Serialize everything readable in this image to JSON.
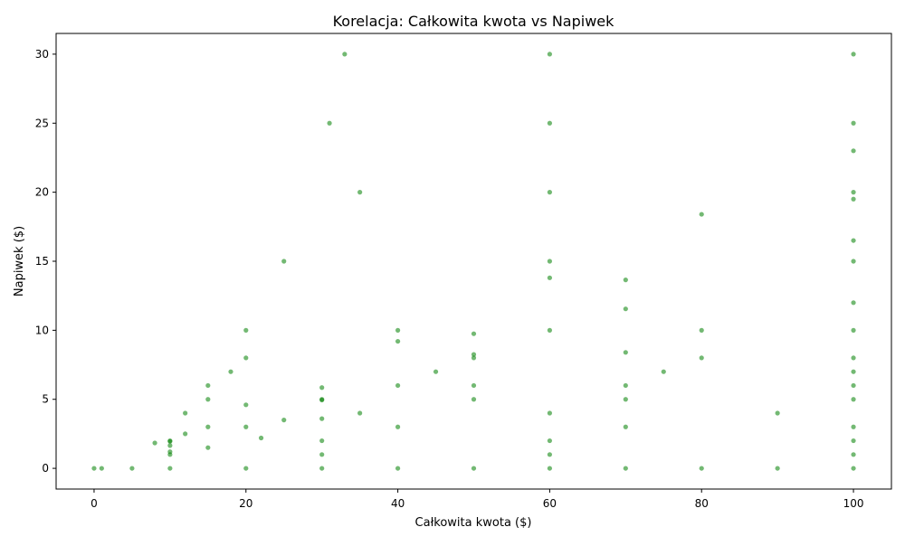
{
  "chart_data": {
    "type": "scatter",
    "title": "Korelacja: Całkowita kwota vs Napiwek",
    "xlabel": "Całkowita kwota ($)",
    "ylabel": "Napiwek ($)",
    "xlim": [
      -5,
      105
    ],
    "ylim": [
      -1.5,
      31.5
    ],
    "x_ticks": [
      0,
      20,
      40,
      60,
      80,
      100
    ],
    "y_ticks": [
      0,
      5,
      10,
      15,
      20,
      25,
      30
    ],
    "grid": false,
    "legend": "none",
    "color": "#008000",
    "series": [
      {
        "points": [
          [
            0,
            0
          ],
          [
            1,
            0
          ],
          [
            5,
            0
          ],
          [
            10,
            0
          ],
          [
            20,
            0
          ],
          [
            30,
            0
          ],
          [
            40,
            0
          ],
          [
            50,
            0
          ],
          [
            60,
            0
          ],
          [
            70,
            0
          ],
          [
            80,
            0
          ],
          [
            90,
            0
          ],
          [
            100,
            0
          ],
          [
            15,
            5
          ],
          [
            30,
            5
          ],
          [
            50,
            5
          ],
          [
            70,
            5
          ],
          [
            100,
            5
          ],
          [
            20,
            10
          ],
          [
            40,
            10
          ],
          [
            60,
            10
          ],
          [
            80,
            10
          ],
          [
            100,
            10
          ],
          [
            10,
            1
          ],
          [
            30,
            1
          ],
          [
            60,
            1
          ],
          [
            100,
            1
          ],
          [
            10,
            2
          ],
          [
            30,
            2
          ],
          [
            60,
            2
          ],
          [
            100,
            2
          ],
          [
            15,
            3
          ],
          [
            40,
            3
          ],
          [
            70,
            3
          ],
          [
            100,
            3
          ],
          [
            12,
            4
          ],
          [
            35,
            4
          ],
          [
            60,
            4
          ],
          [
            90,
            4
          ],
          [
            15,
            6
          ],
          [
            40,
            6
          ],
          [
            70,
            6
          ],
          [
            100,
            6
          ],
          [
            18,
            7
          ],
          [
            45,
            7
          ],
          [
            75,
            7
          ],
          [
            100,
            7
          ],
          [
            20,
            8
          ],
          [
            50,
            8
          ],
          [
            80,
            8
          ],
          [
            100,
            8
          ],
          [
            25,
            15
          ],
          [
            60,
            15
          ],
          [
            100,
            15
          ],
          [
            35,
            20
          ],
          [
            60,
            20
          ],
          [
            100,
            20
          ],
          [
            31,
            25
          ],
          [
            60,
            25
          ],
          [
            100,
            25
          ],
          [
            33,
            30
          ],
          [
            60,
            30
          ],
          [
            100,
            30
          ],
          [
            8,
            1.84
          ],
          [
            20,
            4.6
          ],
          [
            40,
            9.2
          ],
          [
            60,
            13.8
          ],
          [
            80,
            18.4
          ],
          [
            100,
            23.0
          ],
          [
            10,
            1.95
          ],
          [
            30,
            5.85
          ],
          [
            50,
            9.75
          ],
          [
            70,
            13.65
          ],
          [
            100,
            19.5
          ],
          [
            10,
            1.65
          ],
          [
            30,
            4.95
          ],
          [
            50,
            8.25
          ],
          [
            70,
            11.55
          ],
          [
            100,
            16.5
          ],
          [
            10,
            1.2
          ],
          [
            30,
            3.6
          ],
          [
            50,
            6.0
          ],
          [
            70,
            8.4
          ],
          [
            100,
            12.0
          ],
          [
            12,
            2.5
          ],
          [
            20,
            3.0
          ],
          [
            25,
            3.5
          ],
          [
            15,
            1.5
          ],
          [
            22,
            2.2
          ]
        ]
      }
    ]
  }
}
